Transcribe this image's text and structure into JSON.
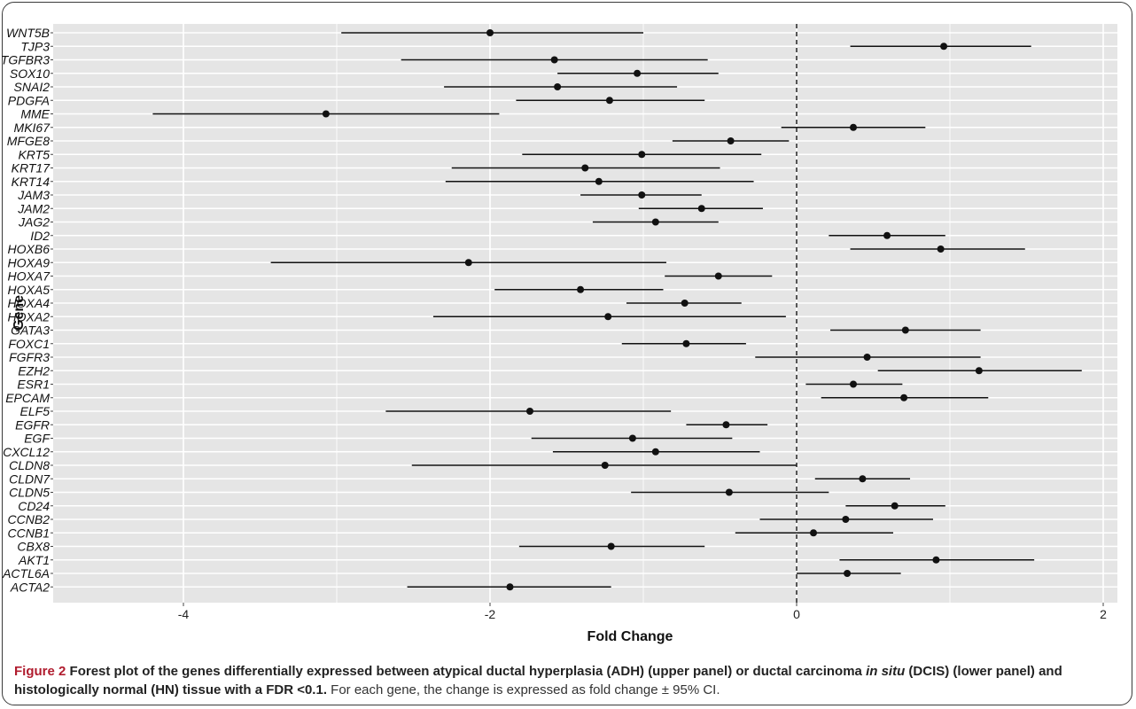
{
  "chart_data": {
    "type": "forest",
    "xlabel": "Fold Change",
    "ylabel": "Gene",
    "xlim": [
      -4.5,
      2.2
    ],
    "xticks": [
      -4,
      -2,
      0,
      2
    ],
    "reference_line": 0,
    "grid": true,
    "genes": [
      {
        "name": "WNT5B",
        "estimate": -2.0,
        "lower": -2.97,
        "upper": -1.0
      },
      {
        "name": "TJP3",
        "estimate": 0.96,
        "lower": 0.35,
        "upper": 1.53
      },
      {
        "name": "TGFBR3",
        "estimate": -1.58,
        "lower": -2.58,
        "upper": -0.58
      },
      {
        "name": "SOX10",
        "estimate": -1.04,
        "lower": -1.56,
        "upper": -0.51
      },
      {
        "name": "SNAI2",
        "estimate": -1.56,
        "lower": -2.3,
        "upper": -0.78
      },
      {
        "name": "PDGFA",
        "estimate": -1.22,
        "lower": -1.83,
        "upper": -0.6
      },
      {
        "name": "MME",
        "estimate": -3.07,
        "lower": -4.2,
        "upper": -1.94
      },
      {
        "name": "MKI67",
        "estimate": 0.37,
        "lower": -0.1,
        "upper": 0.84
      },
      {
        "name": "MFGE8",
        "estimate": -0.43,
        "lower": -0.81,
        "upper": -0.05
      },
      {
        "name": "KRT5",
        "estimate": -1.01,
        "lower": -1.79,
        "upper": -0.23
      },
      {
        "name": "KRT17",
        "estimate": -1.38,
        "lower": -2.25,
        "upper": -0.5
      },
      {
        "name": "KRT14",
        "estimate": -1.29,
        "lower": -2.29,
        "upper": -0.28
      },
      {
        "name": "JAM3",
        "estimate": -1.01,
        "lower": -1.41,
        "upper": -0.62
      },
      {
        "name": "JAM2",
        "estimate": -0.62,
        "lower": -1.03,
        "upper": -0.22
      },
      {
        "name": "JAG2",
        "estimate": -0.92,
        "lower": -1.33,
        "upper": -0.51
      },
      {
        "name": "ID2",
        "estimate": 0.59,
        "lower": 0.21,
        "upper": 0.97
      },
      {
        "name": "HOXB6",
        "estimate": 0.94,
        "lower": 0.35,
        "upper": 1.49
      },
      {
        "name": "HOXA9",
        "estimate": -2.14,
        "lower": -3.43,
        "upper": -0.85
      },
      {
        "name": "HOXA7",
        "estimate": -0.51,
        "lower": -0.86,
        "upper": -0.16
      },
      {
        "name": "HOXA5",
        "estimate": -1.41,
        "lower": -1.97,
        "upper": -0.87
      },
      {
        "name": "HOXA4",
        "estimate": -0.73,
        "lower": -1.11,
        "upper": -0.36
      },
      {
        "name": "HOXA2",
        "estimate": -1.23,
        "lower": -2.37,
        "upper": -0.07
      },
      {
        "name": "GATA3",
        "estimate": 0.71,
        "lower": 0.22,
        "upper": 1.2
      },
      {
        "name": "FOXC1",
        "estimate": -0.72,
        "lower": -1.14,
        "upper": -0.33
      },
      {
        "name": "FGFR3",
        "estimate": 0.46,
        "lower": -0.27,
        "upper": 1.2
      },
      {
        "name": "EZH2",
        "estimate": 1.19,
        "lower": 0.53,
        "upper": 1.86
      },
      {
        "name": "ESR1",
        "estimate": 0.37,
        "lower": 0.06,
        "upper": 0.69
      },
      {
        "name": "EPCAM",
        "estimate": 0.7,
        "lower": 0.16,
        "upper": 1.25
      },
      {
        "name": "ELF5",
        "estimate": -1.74,
        "lower": -2.68,
        "upper": -0.82
      },
      {
        "name": "EGFR",
        "estimate": -0.46,
        "lower": -0.72,
        "upper": -0.19
      },
      {
        "name": "EGF",
        "estimate": -1.07,
        "lower": -1.73,
        "upper": -0.42
      },
      {
        "name": "CXCL12",
        "estimate": -0.92,
        "lower": -1.59,
        "upper": -0.24
      },
      {
        "name": "CLDN8",
        "estimate": -1.25,
        "lower": -2.51,
        "upper": 0.0
      },
      {
        "name": "CLDN7",
        "estimate": 0.43,
        "lower": 0.12,
        "upper": 0.74
      },
      {
        "name": "CLDN5",
        "estimate": -0.44,
        "lower": -1.08,
        "upper": 0.21
      },
      {
        "name": "CD24",
        "estimate": 0.64,
        "lower": 0.32,
        "upper": 0.97
      },
      {
        "name": "CCNB2",
        "estimate": 0.32,
        "lower": -0.24,
        "upper": 0.89
      },
      {
        "name": "CCNB1",
        "estimate": 0.11,
        "lower": -0.4,
        "upper": 0.63
      },
      {
        "name": "CBX8",
        "estimate": -1.21,
        "lower": -1.81,
        "upper": -0.6
      },
      {
        "name": "AKT1",
        "estimate": 0.91,
        "lower": 0.28,
        "upper": 1.55
      },
      {
        "name": "ACTL6A",
        "estimate": 0.33,
        "lower": 0.0,
        "upper": 0.68
      },
      {
        "name": "ACTA2",
        "estimate": -1.87,
        "lower": -2.54,
        "upper": -1.21
      }
    ]
  },
  "colors": {
    "panel_background": "#e5e5e5",
    "gridline": "#ffffff",
    "mark": "#111111",
    "reference_line": "#222222",
    "caption_accent": "#b01c2e"
  },
  "caption": {
    "figure_label": "Figure 2",
    "title_part1": " Forest plot of the genes differentially expressed between atypical ductal hyperplasia (ADH) (upper panel) or ductal carcinoma ",
    "title_italic1": "in situ",
    "title_part2": " (DCIS) (lower panel) and histologically normal (HN) tissue with a FDR <0.1.",
    "body": " For each gene, the change is expressed as fold change ± 95% CI."
  }
}
